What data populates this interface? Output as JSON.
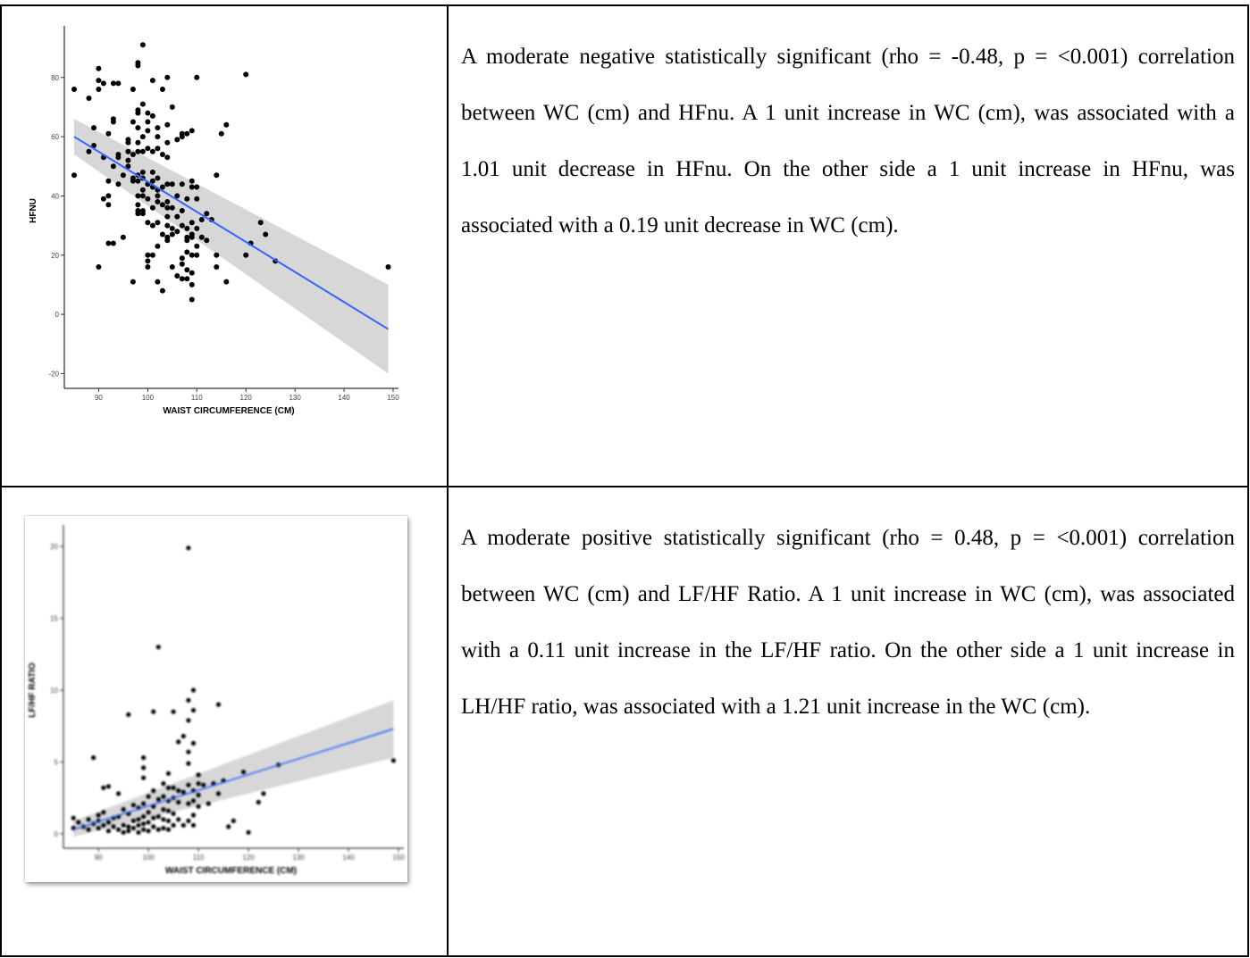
{
  "rows": [
    {
      "description": "A moderate negative statistically significant (rho = -0.48, p = <0.001) correlation between WC (cm) and HFnu. A 1 unit increase in WC (cm), was associated with a 1.01 unit decrease in HFnu. On the other side a 1 unit increase in HFnu, was associated with a 0.19 unit decrease in WC (cm)."
    },
    {
      "description": "A moderate positive statistically significant (rho = 0.48, p = <0.001) correlation between WC (cm) and LF/HF Ratio. A 1 unit increase in WC (cm), was associated with a 0.11 unit increase in the LF/HF ratio. On the other side a 1 unit increase in LH/HF ratio, was associated with a 1.21 unit increase in the WC (cm)."
    }
  ],
  "colors": {
    "points": "#000000",
    "fit_line": "#3366ff",
    "confidence_band": "#d3d3d3"
  },
  "chart_data": [
    {
      "type": "scatter",
      "title": "",
      "xlabel": "WAIST CIRCUMFERENCE (CM)",
      "ylabel": "HFNU",
      "xlim": [
        83,
        150
      ],
      "ylim": [
        -25,
        95
      ],
      "xticks": [
        90,
        100,
        110,
        120,
        130,
        140,
        150
      ],
      "yticks": [
        -20,
        0,
        20,
        40,
        60,
        80
      ],
      "grid": false,
      "fit": {
        "x": [
          85,
          149
        ],
        "y": [
          60,
          -5
        ],
        "band_lower": [
          54,
          -20
        ],
        "band_upper": [
          66,
          10
        ]
      },
      "points": [
        [
          85,
          76
        ],
        [
          85,
          47
        ],
        [
          88,
          55
        ],
        [
          88,
          73
        ],
        [
          89,
          57
        ],
        [
          89,
          63
        ],
        [
          90,
          76
        ],
        [
          90,
          79
        ],
        [
          90,
          83
        ],
        [
          90,
          16
        ],
        [
          91,
          78
        ],
        [
          91,
          53
        ],
        [
          91,
          39
        ],
        [
          92,
          61
        ],
        [
          92,
          24
        ],
        [
          92,
          45
        ],
        [
          92,
          40
        ],
        [
          92,
          37
        ],
        [
          93,
          78
        ],
        [
          93,
          65
        ],
        [
          93,
          66
        ],
        [
          93,
          50
        ],
        [
          93,
          24
        ],
        [
          94,
          53
        ],
        [
          94,
          54
        ],
        [
          94,
          44
        ],
        [
          94,
          78
        ],
        [
          95,
          47
        ],
        [
          95,
          26
        ],
        [
          96,
          59
        ],
        [
          96,
          58
        ],
        [
          96,
          52
        ],
        [
          96,
          55
        ],
        [
          96,
          50
        ],
        [
          97,
          65
        ],
        [
          97,
          76
        ],
        [
          97,
          45
        ],
        [
          97,
          46
        ],
        [
          97,
          11
        ],
        [
          97,
          54
        ],
        [
          98,
          84
        ],
        [
          98,
          85
        ],
        [
          98,
          68
        ],
        [
          98,
          69
        ],
        [
          98,
          63
        ],
        [
          98,
          58
        ],
        [
          98,
          55
        ],
        [
          98,
          45
        ],
        [
          98,
          47
        ],
        [
          98,
          40
        ],
        [
          98,
          37
        ],
        [
          98,
          35
        ],
        [
          98,
          34
        ],
        [
          99,
          91
        ],
        [
          99,
          71
        ],
        [
          99,
          60
        ],
        [
          99,
          55
        ],
        [
          99,
          48
        ],
        [
          99,
          46
        ],
        [
          99,
          42
        ],
        [
          99,
          40
        ],
        [
          99,
          35
        ],
        [
          99,
          34
        ],
        [
          100,
          68
        ],
        [
          100,
          65
        ],
        [
          100,
          62
        ],
        [
          100,
          56
        ],
        [
          100,
          44
        ],
        [
          100,
          39
        ],
        [
          100,
          31
        ],
        [
          100,
          20
        ],
        [
          100,
          18
        ],
        [
          100,
          16
        ],
        [
          101,
          79
        ],
        [
          101,
          67
        ],
        [
          101,
          55
        ],
        [
          101,
          48
        ],
        [
          101,
          45
        ],
        [
          101,
          43
        ],
        [
          101,
          36
        ],
        [
          101,
          30
        ],
        [
          101,
          20
        ],
        [
          102,
          63
        ],
        [
          102,
          60
        ],
        [
          102,
          56
        ],
        [
          102,
          46
        ],
        [
          102,
          42
        ],
        [
          102,
          40
        ],
        [
          102,
          38
        ],
        [
          102,
          31
        ],
        [
          102,
          23
        ],
        [
          102,
          11
        ],
        [
          103,
          76
        ],
        [
          103,
          54
        ],
        [
          103,
          43
        ],
        [
          103,
          37
        ],
        [
          103,
          27
        ],
        [
          103,
          8
        ],
        [
          104,
          80
        ],
        [
          104,
          64
        ],
        [
          104,
          58
        ],
        [
          104,
          53
        ],
        [
          104,
          44
        ],
        [
          104,
          38
        ],
        [
          104,
          36
        ],
        [
          104,
          33
        ],
        [
          104,
          30
        ],
        [
          104,
          26
        ],
        [
          104,
          25
        ],
        [
          105,
          70
        ],
        [
          105,
          44
        ],
        [
          105,
          36
        ],
        [
          105,
          29
        ],
        [
          105,
          27
        ],
        [
          105,
          16
        ],
        [
          106,
          59
        ],
        [
          106,
          40
        ],
        [
          106,
          33
        ],
        [
          106,
          28
        ],
        [
          106,
          13
        ],
        [
          107,
          60
        ],
        [
          107,
          61
        ],
        [
          107,
          44
        ],
        [
          107,
          35
        ],
        [
          107,
          30
        ],
        [
          107,
          19
        ],
        [
          107,
          17
        ],
        [
          107,
          12
        ],
        [
          108,
          61
        ],
        [
          108,
          39
        ],
        [
          108,
          29
        ],
        [
          108,
          26
        ],
        [
          108,
          25
        ],
        [
          108,
          21
        ],
        [
          108,
          15
        ],
        [
          108,
          12
        ],
        [
          109,
          62
        ],
        [
          109,
          45
        ],
        [
          109,
          43
        ],
        [
          109,
          31
        ],
        [
          109,
          27
        ],
        [
          109,
          26
        ],
        [
          109,
          20
        ],
        [
          109,
          14
        ],
        [
          109,
          10
        ],
        [
          109,
          5
        ],
        [
          110,
          80
        ],
        [
          110,
          43
        ],
        [
          110,
          39
        ],
        [
          110,
          29
        ],
        [
          110,
          23
        ],
        [
          110,
          20
        ],
        [
          111,
          32
        ],
        [
          111,
          26
        ],
        [
          112,
          34
        ],
        [
          112,
          25
        ],
        [
          113,
          32
        ],
        [
          114,
          47
        ],
        [
          114,
          20
        ],
        [
          114,
          16
        ],
        [
          115,
          61
        ],
        [
          116,
          64
        ],
        [
          116,
          11
        ],
        [
          120,
          81
        ],
        [
          120,
          20
        ],
        [
          121,
          24
        ],
        [
          123,
          31
        ],
        [
          124,
          27
        ],
        [
          126,
          18
        ],
        [
          149,
          16
        ]
      ]
    },
    {
      "type": "scatter",
      "title": "",
      "xlabel": "WAIST CIRCUMFERENCE (CM)",
      "ylabel": "LF/HF RATIO",
      "xlim": [
        83,
        150
      ],
      "ylim": [
        -1,
        21
      ],
      "xticks": [
        90,
        100,
        110,
        120,
        130,
        140,
        150
      ],
      "yticks": [
        0,
        5,
        10,
        15,
        20
      ],
      "grid": false,
      "fit": {
        "x": [
          85,
          149
        ],
        "y": [
          0.3,
          7.3
        ],
        "band_lower": [
          -0.2,
          5.3
        ],
        "band_upper": [
          0.9,
          9.3
        ]
      },
      "points": [
        [
          85,
          1.1
        ],
        [
          85,
          0.4
        ],
        [
          86,
          0.8
        ],
        [
          87,
          0.5
        ],
        [
          88,
          0.3
        ],
        [
          88,
          1.0
        ],
        [
          89,
          0.7
        ],
        [
          89,
          5.3
        ],
        [
          90,
          1.3
        ],
        [
          90,
          0.9
        ],
        [
          90,
          0.4
        ],
        [
          91,
          3.2
        ],
        [
          91,
          1.5
        ],
        [
          91,
          0.6
        ],
        [
          92,
          3.3
        ],
        [
          92,
          0.8
        ],
        [
          92,
          0.2
        ],
        [
          93,
          1.1
        ],
        [
          93,
          0.5
        ],
        [
          94,
          2.8
        ],
        [
          94,
          1.2
        ],
        [
          94,
          0.3
        ],
        [
          95,
          1.7
        ],
        [
          95,
          0.6
        ],
        [
          95,
          0.1
        ],
        [
          96,
          8.3
        ],
        [
          96,
          1.4
        ],
        [
          96,
          0.5
        ],
        [
          96,
          0.2
        ],
        [
          97,
          2.0
        ],
        [
          97,
          0.9
        ],
        [
          97,
          0.4
        ],
        [
          98,
          1.8
        ],
        [
          98,
          1.0
        ],
        [
          98,
          0.6
        ],
        [
          98,
          0.1
        ],
        [
          99,
          5.3
        ],
        [
          99,
          4.6
        ],
        [
          99,
          3.9
        ],
        [
          99,
          2.1
        ],
        [
          99,
          1.2
        ],
        [
          99,
          0.7
        ],
        [
          99,
          0.3
        ],
        [
          100,
          2.6
        ],
        [
          100,
          1.5
        ],
        [
          100,
          0.8
        ],
        [
          100,
          0.2
        ],
        [
          101,
          8.5
        ],
        [
          101,
          3.0
        ],
        [
          101,
          1.9
        ],
        [
          101,
          1.1
        ],
        [
          101,
          0.5
        ],
        [
          102,
          13.0
        ],
        [
          102,
          2.4
        ],
        [
          102,
          1.2
        ],
        [
          102,
          0.3
        ],
        [
          103,
          3.5
        ],
        [
          103,
          2.6
        ],
        [
          103,
          1.7
        ],
        [
          103,
          1.0
        ],
        [
          103,
          0.4
        ],
        [
          104,
          4.2
        ],
        [
          104,
          3.2
        ],
        [
          104,
          2.3
        ],
        [
          104,
          1.6
        ],
        [
          104,
          0.9
        ],
        [
          104,
          0.3
        ],
        [
          105,
          8.5
        ],
        [
          105,
          3.2
        ],
        [
          105,
          2.5
        ],
        [
          105,
          1.4
        ],
        [
          105,
          0.6
        ],
        [
          106,
          6.4
        ],
        [
          106,
          3.0
        ],
        [
          106,
          2.2
        ],
        [
          106,
          1.0
        ],
        [
          107,
          6.8
        ],
        [
          107,
          2.9
        ],
        [
          107,
          0.6
        ],
        [
          108,
          19.9
        ],
        [
          108,
          9.3
        ],
        [
          108,
          7.9
        ],
        [
          108,
          5.7
        ],
        [
          108,
          4.9
        ],
        [
          108,
          3.4
        ],
        [
          108,
          2.1
        ],
        [
          108,
          0.9
        ],
        [
          109,
          10.0
        ],
        [
          109,
          8.6
        ],
        [
          109,
          6.3
        ],
        [
          109,
          3.0
        ],
        [
          109,
          2.3
        ],
        [
          109,
          1.3
        ],
        [
          109,
          0.6
        ],
        [
          110,
          4.1
        ],
        [
          110,
          3.5
        ],
        [
          110,
          2.7
        ],
        [
          110,
          1.9
        ],
        [
          111,
          3.4
        ],
        [
          112,
          2.1
        ],
        [
          113,
          3.5
        ],
        [
          114,
          9.0
        ],
        [
          114,
          2.8
        ],
        [
          115,
          3.7
        ],
        [
          116,
          0.5
        ],
        [
          117,
          0.9
        ],
        [
          119,
          4.3
        ],
        [
          120,
          0.1
        ],
        [
          122,
          2.2
        ],
        [
          123,
          2.8
        ],
        [
          126,
          4.8
        ],
        [
          149,
          5.1
        ]
      ]
    }
  ]
}
